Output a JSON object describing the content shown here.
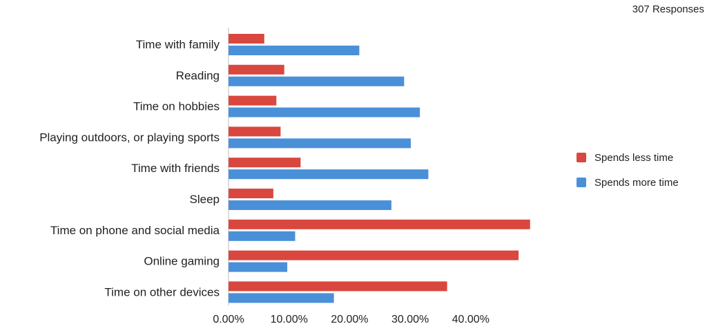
{
  "chart_data": {
    "type": "bar",
    "orientation": "horizontal",
    "annotation": "307 Responses",
    "categories": [
      "Time with family",
      "Reading",
      "Time on hobbies",
      "Playing outdoors, or playing sports",
      "Time with friends",
      "Sleep",
      "Time on phone and social media",
      "Online gaming",
      "Time on other devices"
    ],
    "series": [
      {
        "name": "Spends less time",
        "color": "#d9473f",
        "values": [
          5.9,
          9.2,
          7.9,
          8.6,
          11.9,
          7.4,
          49.8,
          47.9,
          36.1
        ]
      },
      {
        "name": "Spends more time",
        "color": "#4a90d9",
        "values": [
          21.6,
          29.0,
          31.6,
          30.1,
          33.0,
          26.9,
          11.0,
          9.7,
          17.4
        ]
      }
    ],
    "x_ticks": [
      "0.00%",
      "10.00%",
      "20.00%",
      "30.00%",
      "40.00%"
    ],
    "x_tick_values": [
      0,
      10,
      20,
      30,
      40
    ],
    "xlim": [
      0,
      50
    ],
    "grid": false,
    "legend_position": "right"
  }
}
